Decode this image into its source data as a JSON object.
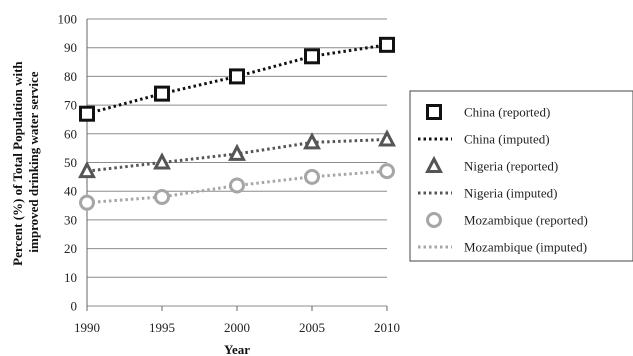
{
  "chart_data": {
    "type": "line",
    "title": "",
    "xlabel": "Year",
    "ylabel_lines": [
      "Percent (%) of Total Population with",
      "improved drinking water service"
    ],
    "x": [
      1990,
      1995,
      2000,
      2005,
      2010
    ],
    "xlim": [
      1990,
      2010
    ],
    "ylim": [
      0,
      100
    ],
    "yticks": [
      0,
      10,
      20,
      30,
      40,
      50,
      60,
      70,
      80,
      90,
      100
    ],
    "grid": "horizontal",
    "legend_position": "right",
    "series": [
      {
        "key": "china",
        "marker": "square",
        "color": "#111111",
        "reported_label": "China (reported)",
        "imputed_label": "China (imputed)",
        "values": [
          67,
          74,
          80,
          87,
          91
        ]
      },
      {
        "key": "nigeria",
        "marker": "triangle",
        "color": "#555555",
        "reported_label": "Nigeria (reported)",
        "imputed_label": "Nigeria (imputed)",
        "values": [
          47,
          50,
          53,
          57,
          58
        ]
      },
      {
        "key": "mozambique",
        "marker": "circle",
        "color": "#a6a6a6",
        "reported_label": "Mozambique (reported)",
        "imputed_label": "Mozambique (imputed)",
        "values": [
          36,
          38,
          42,
          45,
          47
        ]
      }
    ]
  }
}
